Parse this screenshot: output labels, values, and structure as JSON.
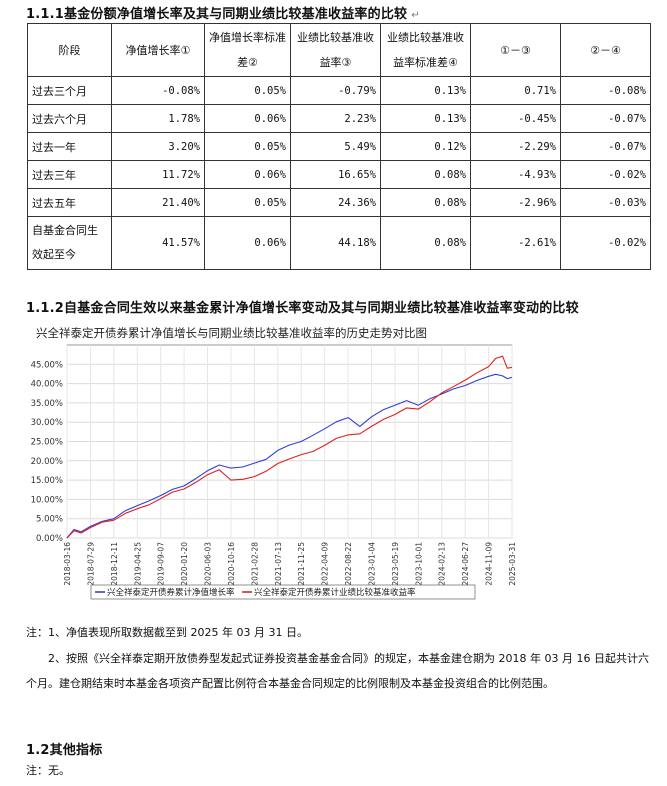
{
  "section1": {
    "heading": "1.1.1基金份额净值增长率及其与同期业绩比较基准收益率的比较"
  },
  "table": {
    "headers": [
      "阶段",
      "净值增长率①",
      "净值增长率标准差②",
      "业绩比较基准收益率③",
      "业绩比较基准收益率标准差④",
      "①－③",
      "②－④"
    ],
    "rows": [
      [
        "过去三个月",
        "-0.08%",
        "0.05%",
        "-0.79%",
        "0.13%",
        "0.71%",
        "-0.08%"
      ],
      [
        "过去六个月",
        "1.78%",
        "0.06%",
        "2.23%",
        "0.13%",
        "-0.45%",
        "-0.07%"
      ],
      [
        "过去一年",
        "3.20%",
        "0.05%",
        "5.49%",
        "0.12%",
        "-2.29%",
        "-0.07%"
      ],
      [
        "过去三年",
        "11.72%",
        "0.06%",
        "16.65%",
        "0.08%",
        "-4.93%",
        "-0.02%"
      ],
      [
        "过去五年",
        "21.40%",
        "0.05%",
        "24.36%",
        "0.08%",
        "-2.96%",
        "-0.03%"
      ],
      [
        "自基金合同生效起至今",
        "41.57%",
        "0.06%",
        "44.18%",
        "0.08%",
        "-2.61%",
        "-0.02%"
      ]
    ]
  },
  "section2": {
    "heading": "1.1.2自基金合同生效以来基金累计净值增长率变动及其与同期业绩比较基准收益率变动的比较"
  },
  "chart_data": {
    "type": "line",
    "title": "兴全祥泰定开债券累计净值增长与同期业绩比较基准收益率的历史走势对比图",
    "x_ticks": [
      "2018-03-16",
      "2018-07-29",
      "2018-12-11",
      "2019-04-25",
      "2019-09-07",
      "2020-01-20",
      "2020-06-03",
      "2020-10-16",
      "2021-02-28",
      "2021-07-13",
      "2021-11-25",
      "2022-04-09",
      "2022-08-22",
      "2023-01-04",
      "2023-05-19",
      "2023-10-01",
      "2024-02-13",
      "2024-06-27",
      "2024-11-09",
      "2025-03-31"
    ],
    "y_ticks": [
      "0.00%",
      "5.00%",
      "10.00%",
      "15.00%",
      "20.00%",
      "25.00%",
      "30.00%",
      "35.00%",
      "40.00%",
      "45.00%"
    ],
    "ylim": [
      0,
      50
    ],
    "grid": true,
    "legend_position": "bottom",
    "series": [
      {
        "name": "兴全祥泰定开债券累计净值增长率",
        "color": "#2f3fd6",
        "x_index": [
          0,
          0.3,
          0.6,
          1,
          1.5,
          2,
          2.5,
          3,
          3.5,
          4,
          4.5,
          5,
          5.5,
          6,
          6.5,
          7,
          7.5,
          8,
          8.5,
          9,
          9.5,
          10,
          10.5,
          11,
          11.5,
          12,
          12.5,
          13,
          13.5,
          14,
          14.5,
          15,
          15.5,
          16,
          16.5,
          17,
          17.5,
          18,
          18.3,
          18.6,
          18.8,
          19
        ],
        "values": [
          0,
          2.2,
          1.6,
          3.0,
          4.3,
          5.0,
          7.1,
          8.4,
          9.6,
          11.0,
          12.6,
          13.5,
          15.4,
          17.4,
          18.9,
          18.1,
          18.4,
          19.4,
          20.4,
          22.7,
          24.1,
          25.0,
          26.6,
          28.3,
          30.1,
          31.2,
          28.9,
          31.4,
          33.2,
          34.4,
          35.6,
          34.4,
          36.1,
          37.3,
          38.6,
          39.5,
          40.8,
          41.9,
          42.4,
          42.0,
          41.3,
          41.6
        ]
      },
      {
        "name": "兴全祥泰定开债券累计业绩比较基准收益率",
        "color": "#e02020",
        "x_index": [
          0,
          0.3,
          0.6,
          1,
          1.5,
          2,
          2.5,
          3,
          3.5,
          4,
          4.5,
          5,
          5.5,
          6,
          6.5,
          7,
          7.5,
          8,
          8.5,
          9,
          9.5,
          10,
          10.5,
          11,
          11.5,
          12,
          12.5,
          13,
          13.5,
          14,
          14.5,
          15,
          15.5,
          16,
          16.5,
          17,
          17.5,
          18,
          18.3,
          18.6,
          18.8,
          19
        ],
        "values": [
          0,
          1.9,
          1.3,
          2.7,
          4.1,
          4.6,
          6.4,
          7.6,
          8.6,
          10.2,
          11.9,
          12.7,
          14.4,
          16.4,
          17.7,
          15.0,
          15.2,
          15.9,
          17.3,
          19.3,
          20.5,
          21.6,
          22.4,
          24.0,
          25.8,
          26.7,
          27.0,
          28.9,
          30.7,
          32.0,
          33.7,
          33.4,
          35.3,
          37.6,
          39.2,
          40.9,
          42.8,
          44.4,
          46.5,
          47.1,
          44.0,
          44.2
        ]
      }
    ]
  },
  "notes": {
    "note1": "注：1、净值表现所取数据截至到 2025 年 03 月 31 日。",
    "note2": "2、按照《兴全祥泰定期开放债券型发起式证券投资基金基金合同》的规定，本基金建仓期为 2018 年 03 月 16 日起共计六个月。建仓期结束时本基金各项资产配置比例符合本基金合同规定的比例限制及本基金投资组合的比例范围。"
  },
  "section3": {
    "heading": "1.2其他指标",
    "note": "注：无。"
  }
}
